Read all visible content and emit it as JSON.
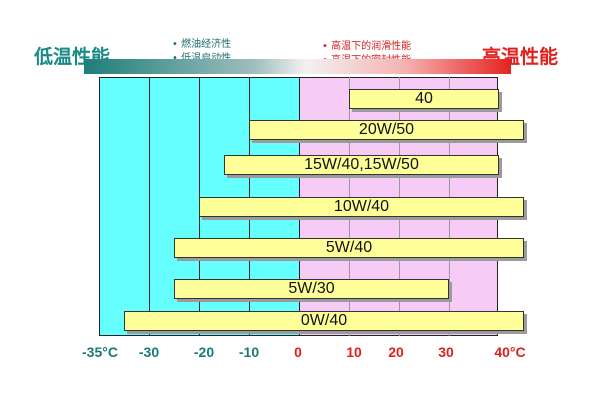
{
  "header": {
    "low_temp_title": "低温性能",
    "high_temp_title": "高温性能",
    "low_temp_notes": [
      "燃油经济性",
      "低温启动性"
    ],
    "high_temp_notes": [
      "高温下的润滑性能",
      "高温下的密封性能"
    ]
  },
  "colors": {
    "cold_accent": "#1a8a86",
    "warm_accent": "#e0201e",
    "cold_zone": "#66ffff",
    "warm_zone": "#f6ccf6",
    "bar_fill": "#ffff99"
  },
  "axis": {
    "unit": "°C",
    "ticks": [
      "-35°C",
      "-30",
      "-20",
      "-10",
      "0",
      "10",
      "20",
      "30",
      "40°C"
    ]
  },
  "grades": [
    {
      "label": "40",
      "min_temp": 10,
      "max_temp": 40
    },
    {
      "label": "20W/50",
      "min_temp": -10,
      "max_temp": 45
    },
    {
      "label": "15W/40,15W/50",
      "min_temp": -15,
      "max_temp": 40
    },
    {
      "label": "10W/40",
      "min_temp": -20,
      "max_temp": 45
    },
    {
      "label": "5W/40",
      "min_temp": -25,
      "max_temp": 45
    },
    {
      "label": "5W/30",
      "min_temp": -25,
      "max_temp": 30
    },
    {
      "label": "0W/40",
      "min_temp": -35,
      "max_temp": 45
    }
  ]
}
